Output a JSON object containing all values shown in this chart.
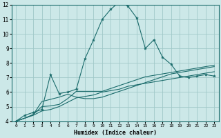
{
  "xlabel": "Humidex (Indice chaleur)",
  "bg_color": "#cce8e8",
  "grid_color": "#a0c8c8",
  "line_color": "#1a6b6b",
  "xlim": [
    -0.5,
    23.5
  ],
  "ylim": [
    4,
    12
  ],
  "xticks": [
    0,
    1,
    2,
    3,
    4,
    5,
    6,
    7,
    8,
    9,
    10,
    11,
    12,
    13,
    14,
    15,
    16,
    17,
    18,
    19,
    20,
    21,
    22,
    23
  ],
  "yticks": [
    4,
    5,
    6,
    7,
    8,
    9,
    10,
    11,
    12
  ],
  "series_with_markers": [
    [
      4.0,
      4.4,
      4.6,
      4.8,
      7.2,
      5.9,
      6.0,
      6.2,
      8.3,
      9.6,
      11.0,
      11.7,
      12.2,
      11.9,
      11.1,
      9.0,
      9.6,
      8.4,
      7.9,
      7.1,
      7.0,
      7.1,
      7.2,
      7.1
    ]
  ],
  "series_plain": [
    [
      4.0,
      4.2,
      4.45,
      5.35,
      5.5,
      5.65,
      5.85,
      5.65,
      5.55,
      5.55,
      5.65,
      5.85,
      6.05,
      6.25,
      6.45,
      6.65,
      6.85,
      7.05,
      7.25,
      7.35,
      7.45,
      7.55,
      7.65,
      7.75
    ],
    [
      4.0,
      4.2,
      4.45,
      5.0,
      5.05,
      5.15,
      5.55,
      6.05,
      6.05,
      6.05,
      6.05,
      6.25,
      6.45,
      6.65,
      6.85,
      7.05,
      7.15,
      7.25,
      7.35,
      7.45,
      7.55,
      7.65,
      7.75,
      7.85
    ],
    [
      4.0,
      4.2,
      4.4,
      4.7,
      4.8,
      5.0,
      5.3,
      5.6,
      5.7,
      5.8,
      6.0,
      6.1,
      6.2,
      6.4,
      6.5,
      6.6,
      6.7,
      6.8,
      6.9,
      7.0,
      7.1,
      7.2,
      7.3,
      7.4
    ]
  ]
}
